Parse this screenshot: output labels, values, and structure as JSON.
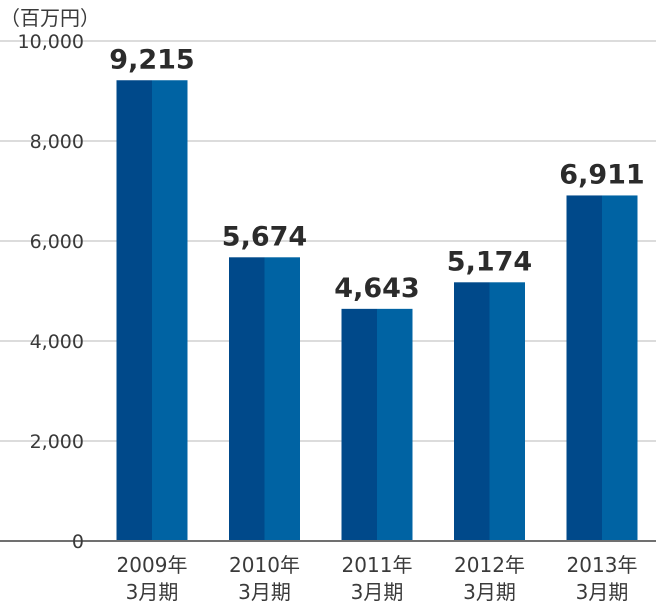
{
  "chart_data": {
    "type": "bar",
    "unit_label": "（百万円）",
    "categories": [
      [
        "2009年",
        "3月期"
      ],
      [
        "2010年",
        "3月期"
      ],
      [
        "2011年",
        "3月期"
      ],
      [
        "2012年",
        "3月期"
      ],
      [
        "2013年",
        "3月期"
      ]
    ],
    "values": [
      9215,
      5674,
      4643,
      5174,
      6911
    ],
    "value_labels": [
      "9,215",
      "5,674",
      "4,643",
      "5,174",
      "6,911"
    ],
    "yticks": [
      0,
      2000,
      4000,
      6000,
      8000,
      10000
    ],
    "ytick_labels": [
      "0",
      "2,000",
      "4,000",
      "6,000",
      "8,000",
      "10,000"
    ],
    "ylim": [
      0,
      10000
    ],
    "grid": true,
    "colors": {
      "bar_dark": "#00498a",
      "bar_light": "#0063a3",
      "grid": "#c8c8c8",
      "axis": "#707070",
      "text": "#3a3a3a",
      "value_text": "#2b2b2b"
    }
  }
}
